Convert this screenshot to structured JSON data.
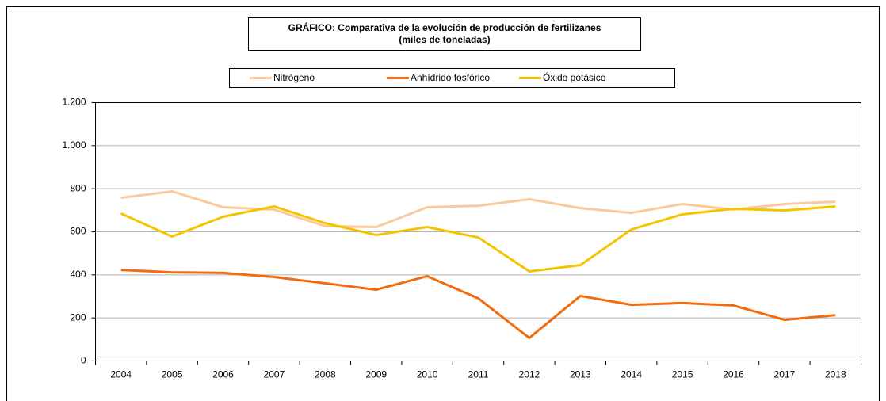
{
  "chart_data": {
    "type": "line",
    "title": "GRÁFICO: Comparativa de la evolución de producción de fertilizanes",
    "subtitle": "(miles de toneladas)",
    "categories": [
      "2004",
      "2005",
      "2006",
      "2007",
      "2008",
      "2009",
      "2010",
      "2011",
      "2012",
      "2013",
      "2014",
      "2015",
      "2016",
      "2017",
      "2018"
    ],
    "series": [
      {
        "name": "Nitrógeno",
        "color": "#fbc99b",
        "values": [
          758,
          788,
          714,
          703,
          626,
          622,
          714,
          721,
          751,
          710,
          688,
          729,
          703,
          729,
          740
        ]
      },
      {
        "name": "Anhídrido fosfórico",
        "color": "#f26b0f",
        "values": [
          423,
          412,
          409,
          390,
          361,
          331,
          394,
          291,
          107,
          302,
          261,
          269,
          258,
          191,
          213
        ]
      },
      {
        "name": "Óxido potásico",
        "color": "#f5c400",
        "values": [
          685,
          578,
          670,
          718,
          640,
          585,
          622,
          574,
          416,
          445,
          611,
          681,
          707,
          699,
          718
        ]
      }
    ],
    "ylim": [
      0,
      1200
    ],
    "yticks": [
      0,
      200,
      400,
      600,
      800,
      {
        "value": 1000,
        "label": "1.000"
      },
      {
        "value": 1200,
        "label": "1.200"
      }
    ],
    "grid": true,
    "legend": "top"
  }
}
